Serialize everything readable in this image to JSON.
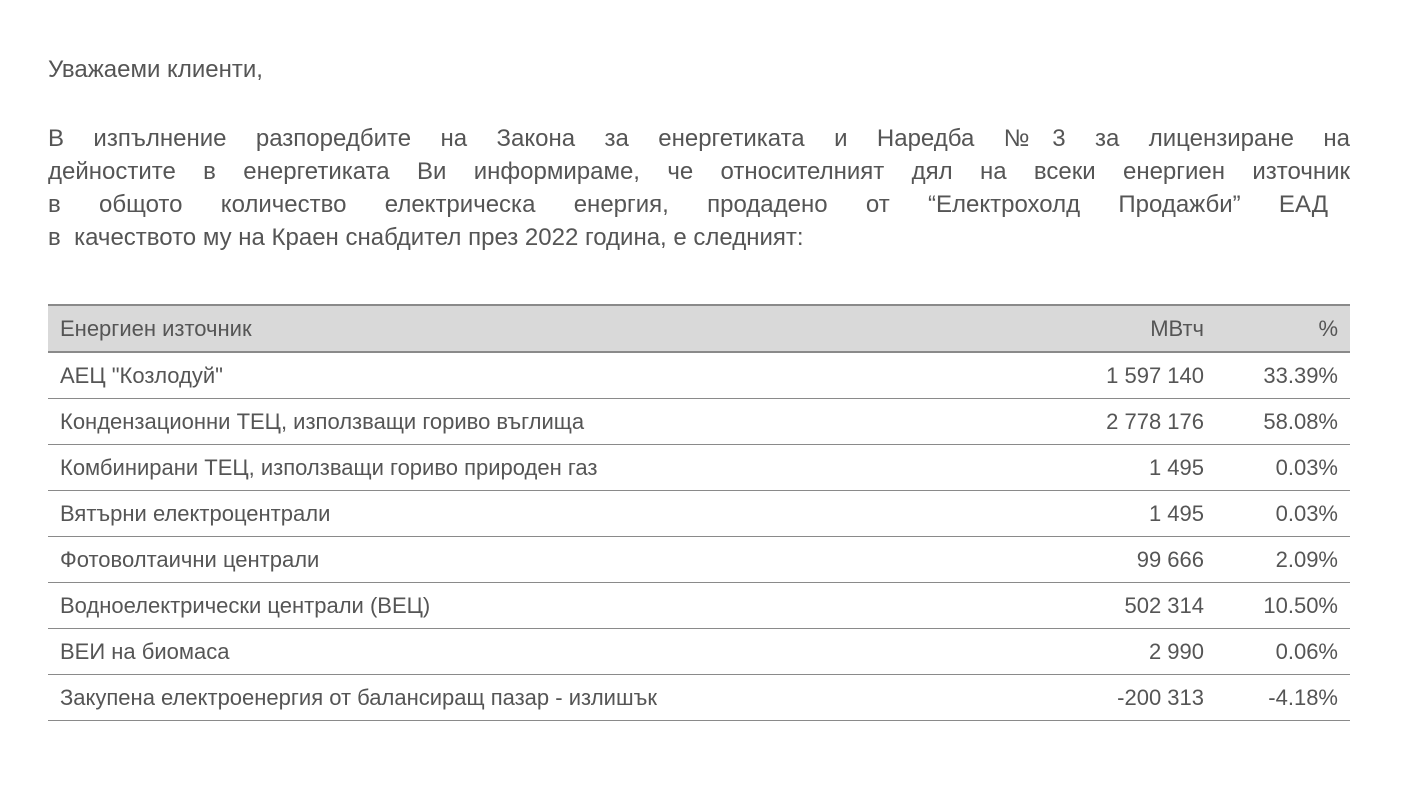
{
  "greeting": "Уважаеми клиенти,",
  "paragraph_lines": [
    "В изпълнение разпоредбите на Закона за енергетиката и Наредба №3 за лицензиране на",
    "дейностите в енергетиката Ви информираме, че относителният дял на всеки енергиен източник",
    "в общото количество електрическа енергия, продадено от “Електрохолд Продажби” ЕАД",
    "в  качеството му на Краен снабдител през 2022 година, е следният:"
  ],
  "table": {
    "headers": [
      "Енергиен източник",
      "МВтч",
      "%"
    ],
    "rows": [
      [
        "АЕЦ \"Козлодуй\"",
        "1 597 140",
        "33.39%"
      ],
      [
        "Кондензационни ТЕЦ, използващи гориво въглища",
        "2 778 176",
        "58.08%"
      ],
      [
        "Комбинирани ТЕЦ, използващи гориво природен газ",
        "1 495",
        "0.03%"
      ],
      [
        "Вятърни електроцентрали",
        "1 495",
        "0.03%"
      ],
      [
        "Фотоволтаични централи",
        "99 666",
        "2.09%"
      ],
      [
        "Водноелектрически централи (ВЕЦ)",
        "502 314",
        "10.50%"
      ],
      [
        "ВЕИ на биомаса",
        "2 990",
        "0.06%"
      ],
      [
        "Закупена електроенергия от балансиращ пазар - излишък",
        "-200 313",
        "-4.18%"
      ]
    ]
  }
}
